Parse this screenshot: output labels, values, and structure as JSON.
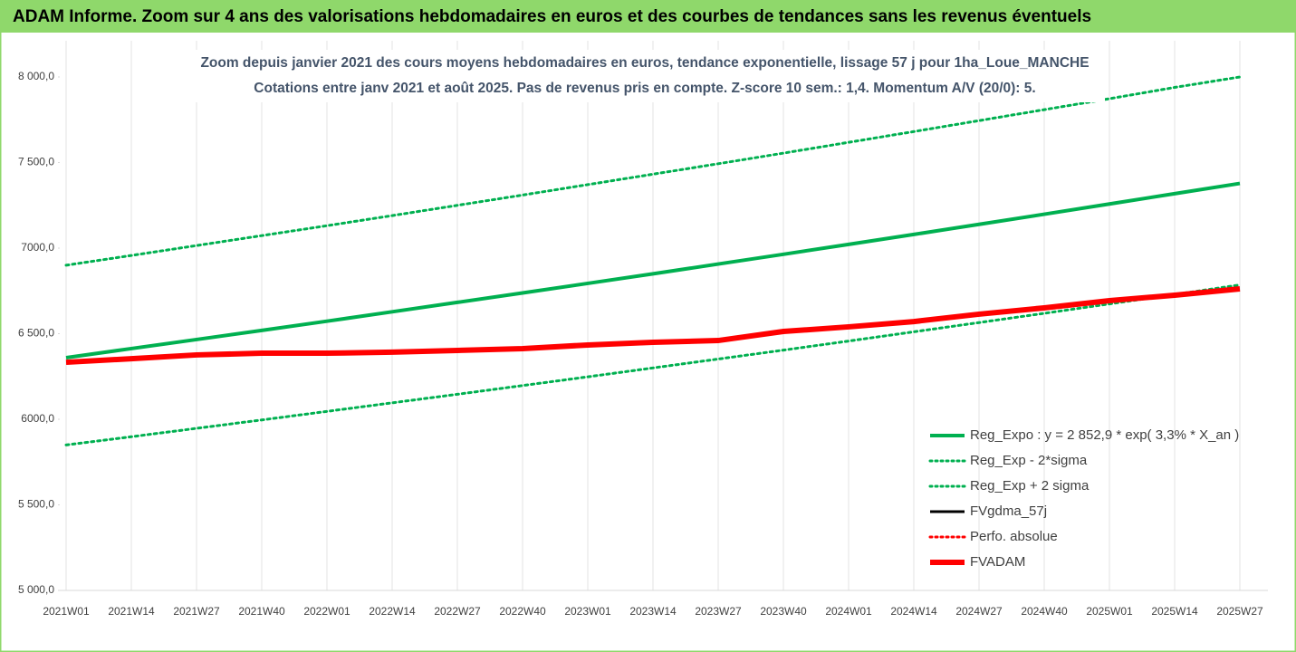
{
  "header": {
    "title": "ADAM Informe. Zoom sur 4 ans des valorisations hebdomadaires en euros et des courbes de tendances sans les revenus éventuels"
  },
  "chart_data": {
    "type": "line",
    "title": "Zoom depuis janvier 2021 des cours moyens hebdomadaires en euros, tendance exponentielle, lissage 57 j pour 1ha_Loue_MANCHE",
    "subtitle": "Cotations entre janv 2021 et août 2025.  Pas de revenus pris en compte. Z-score 10 sem.: 1,4. Momentum A/V (20/0): 5.",
    "categories": [
      "2021W01",
      "2021W14",
      "2021W27",
      "2021W40",
      "2022W01",
      "2022W14",
      "2022W27",
      "2022W40",
      "2023W01",
      "2023W14",
      "2023W27",
      "2023W40",
      "2024W01",
      "2024W14",
      "2024W27",
      "2024W40",
      "2025W01",
      "2025W14",
      "2025W27"
    ],
    "series": [
      {
        "name": "Reg_Expo : y = 2 852,9 * exp( 3,3% *  X_an )",
        "color": "#00b050",
        "style": "solid",
        "values": [
          6360,
          6413,
          6466,
          6519,
          6573,
          6628,
          6683,
          6738,
          6794,
          6850,
          6907,
          6964,
          7022,
          7080,
          7139,
          7198,
          7258,
          7318,
          7378
        ]
      },
      {
        "name": "Reg_Exp - 2*sigma",
        "color": "#00b050",
        "style": "dotted",
        "values": [
          5850,
          5898,
          5947,
          5996,
          6046,
          6096,
          6146,
          6197,
          6248,
          6300,
          6352,
          6404,
          6457,
          6511,
          6565,
          6619,
          6674,
          6729,
          6785
        ]
      },
      {
        "name": "Reg_Exp + 2 sigma",
        "color": "#00b050",
        "style": "dotted",
        "values": [
          6900,
          6957,
          7015,
          7073,
          7131,
          7190,
          7250,
          7310,
          7371,
          7432,
          7493,
          7555,
          7618,
          7681,
          7745,
          7809,
          7873,
          7939,
          8000
        ]
      },
      {
        "name": "FVgdma_57j",
        "color": "#000000",
        "style": "solid",
        "values": [
          null,
          null,
          null,
          null,
          null,
          null,
          null,
          null,
          null,
          null,
          null,
          null,
          null,
          null,
          null,
          null,
          null,
          null,
          null
        ]
      },
      {
        "name": "Perfo. absolue",
        "color": "#ff0000",
        "style": "dotted",
        "values": [
          null,
          null,
          null,
          null,
          null,
          null,
          null,
          null,
          null,
          null,
          null,
          null,
          null,
          null,
          null,
          null,
          null,
          null,
          null
        ]
      },
      {
        "name": "FVADAM",
        "color": "#ff0000",
        "style": "solid",
        "values": [
          6333,
          6354,
          6376,
          6386,
          6386,
          6392,
          6402,
          6413,
          6434,
          6450,
          6460,
          6513,
          6540,
          6571,
          6614,
          6651,
          6693,
          6725,
          6762
        ]
      }
    ],
    "ylim": [
      5000,
      8000
    ],
    "yticks": [
      {
        "value": 5000,
        "label": "5 000,0"
      },
      {
        "value": 5500,
        "label": "5 500,0"
      },
      {
        "value": 6000,
        "label": "6000,0"
      },
      {
        "value": 6500,
        "label": "6 500,0"
      },
      {
        "value": 7000,
        "label": "7000,0"
      },
      {
        "value": 7500,
        "label": "7 500,0"
      },
      {
        "value": 8000,
        "label": "8 000,0"
      }
    ],
    "grid": "vertical",
    "legend": "bottom-right"
  }
}
